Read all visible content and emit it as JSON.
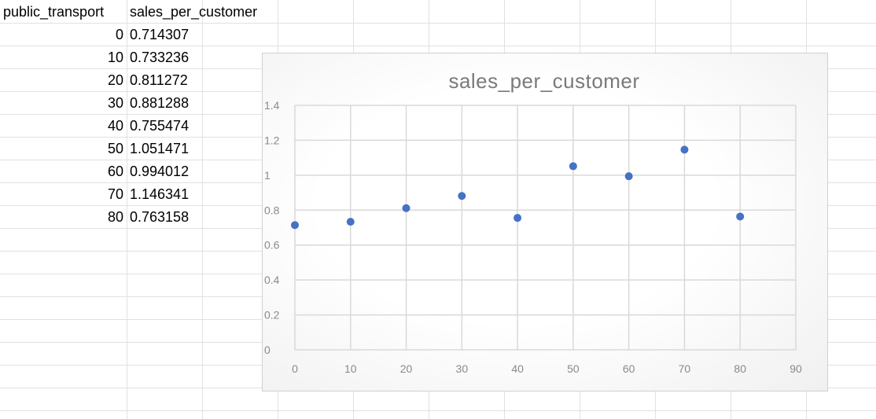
{
  "sheet": {
    "headers": [
      "public_transport",
      "sales_per_customer"
    ],
    "rows": [
      {
        "x": "0",
        "y": "0.714307"
      },
      {
        "x": "10",
        "y": "0.733236"
      },
      {
        "x": "20",
        "y": "0.811272"
      },
      {
        "x": "30",
        "y": "0.881288"
      },
      {
        "x": "40",
        "y": "0.755474"
      },
      {
        "x": "50",
        "y": "1.051471"
      },
      {
        "x": "60",
        "y": "0.994012"
      },
      {
        "x": "70",
        "y": "1.146341"
      },
      {
        "x": "80",
        "y": "0.763158"
      }
    ]
  },
  "chart_data": {
    "type": "scatter",
    "title": "sales_per_customer",
    "xlabel": "",
    "ylabel": "",
    "x": [
      0,
      10,
      20,
      30,
      40,
      50,
      60,
      70,
      80
    ],
    "series": [
      {
        "values": [
          0.714307,
          0.733236,
          0.811272,
          0.881288,
          0.755474,
          1.051471,
          0.994012,
          1.146341,
          0.763158
        ],
        "color": "#4472c4"
      }
    ],
    "xlim": [
      0,
      90
    ],
    "ylim": [
      0,
      1.4
    ],
    "x_ticks": [
      "0",
      "10",
      "20",
      "30",
      "40",
      "50",
      "60",
      "70",
      "80",
      "90"
    ],
    "y_ticks": [
      "0",
      "0.2",
      "0.4",
      "0.6",
      "0.8",
      "1",
      "1.2",
      "1.4"
    ],
    "grid": true,
    "legend": "none",
    "gridline_color": "#d9d9d9",
    "tick_color": "#8a8a8a",
    "title_color": "#7a7a7a"
  }
}
